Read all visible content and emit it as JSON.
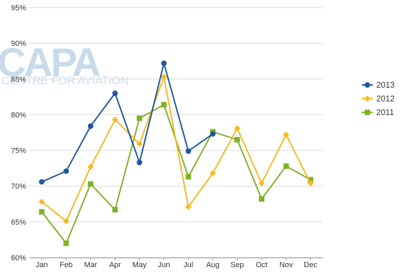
{
  "watermark": {
    "brand": "CAPA",
    "tagline": "CENTRE FOR AVIATION"
  },
  "chart_data": {
    "type": "line",
    "title": "",
    "xlabel": "",
    "ylabel": "",
    "categories": [
      "Jan",
      "Feb",
      "Mar",
      "Apr",
      "May",
      "Jun",
      "Jul",
      "Aug",
      "Sep",
      "Oct",
      "Nov",
      "Dec"
    ],
    "ylim": [
      60,
      95
    ],
    "yticks": [
      60,
      65,
      70,
      75,
      80,
      85,
      90,
      95
    ],
    "ytick_labels": [
      "60%",
      "65%",
      "70%",
      "75%",
      "80%",
      "85%",
      "90%",
      "95%"
    ],
    "grid": "horizontal",
    "legend": "right",
    "series": [
      {
        "name": "2013",
        "color": "#1f57a0",
        "marker": "circle",
        "values": [
          70.6,
          72.1,
          78.4,
          83.0,
          73.3,
          87.2,
          74.9,
          77.3,
          null,
          null,
          null,
          null
        ]
      },
      {
        "name": "2012",
        "color": "#f5b921",
        "marker": "diamond",
        "values": [
          67.8,
          65.1,
          72.7,
          79.3,
          75.9,
          85.3,
          67.1,
          71.8,
          78.1,
          70.4,
          77.2,
          70.4
        ]
      },
      {
        "name": "2011",
        "color": "#7fb229",
        "marker": "square",
        "values": [
          66.4,
          62.0,
          70.3,
          66.7,
          79.5,
          81.4,
          71.3,
          77.6,
          76.5,
          68.2,
          72.8,
          70.9
        ]
      }
    ]
  }
}
